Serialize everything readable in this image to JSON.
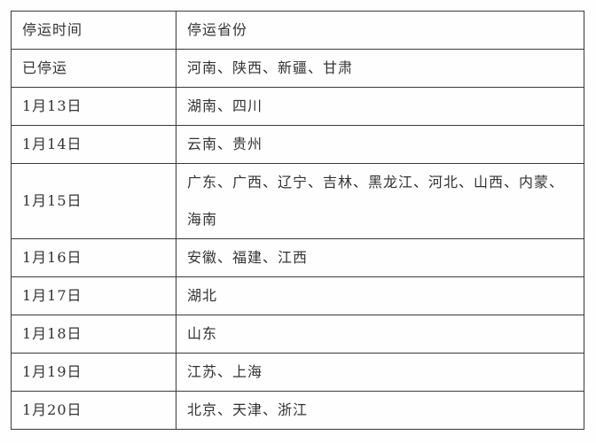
{
  "colors": {
    "border": "#3a3a3a",
    "text": "#333333",
    "background": "#fefefe"
  },
  "table": {
    "headers": [
      "停运时间",
      "停运省份"
    ],
    "rows": [
      {
        "time": "已停运",
        "provinces": "河南、陕西、新疆、甘肃"
      },
      {
        "time": "1月13日",
        "provinces": "湖南、四川"
      },
      {
        "time": "1月14日",
        "provinces": "云南、贵州"
      },
      {
        "time": "1月15日",
        "provinces": "广东、广西、辽宁、吉林、黑龙江、河北、山西、内蒙、\n海南"
      },
      {
        "time": "1月16日",
        "provinces": "安徽、福建、江西"
      },
      {
        "time": "1月17日",
        "provinces": "湖北"
      },
      {
        "time": "1月18日",
        "provinces": "山东"
      },
      {
        "time": "1月19日",
        "provinces": "江苏、上海"
      },
      {
        "time": "1月20日",
        "provinces": "北京、天津、浙江"
      }
    ]
  }
}
